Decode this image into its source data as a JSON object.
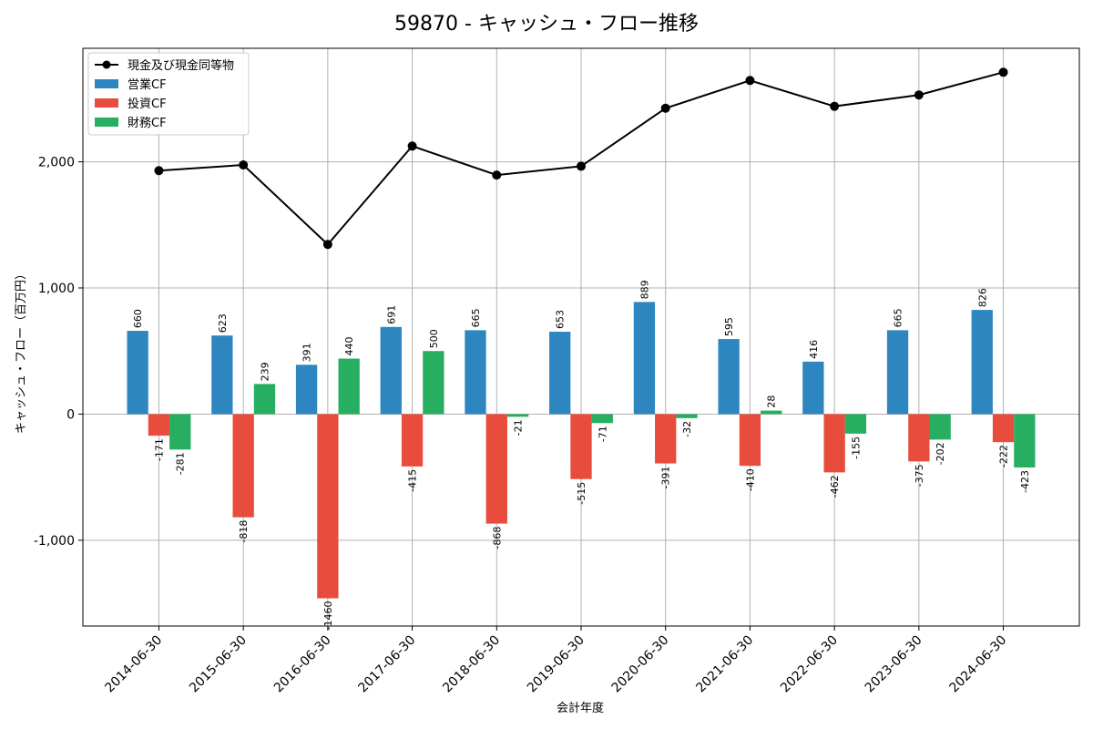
{
  "chart_data": {
    "type": "bar",
    "title": "59870 - キャッシュ・フロー推移",
    "xlabel": "会計年度",
    "ylabel": "キャッシュ・フロー（百万円）",
    "ylim": [
      -1680,
      2900
    ],
    "yticks": [
      -1000,
      0,
      1000,
      2000
    ],
    "ytick_labels": [
      "-1,000",
      "0",
      "1,000",
      "2,000"
    ],
    "grid": true,
    "legend_position": "top-left",
    "categories": [
      "2014-06-30",
      "2015-06-30",
      "2016-06-30",
      "2017-06-30",
      "2018-06-30",
      "2019-06-30",
      "2020-06-30",
      "2021-06-30",
      "2022-06-30",
      "2023-06-30",
      "2024-06-30"
    ],
    "series": [
      {
        "name": "営業CF",
        "kind": "bar",
        "color": "#2e86c1",
        "values": [
          660,
          623,
          391,
          691,
          665,
          653,
          889,
          595,
          416,
          665,
          826
        ]
      },
      {
        "name": "投資CF",
        "kind": "bar",
        "color": "#e74c3c",
        "values": [
          -171,
          -818,
          -1460,
          -415,
          -868,
          -515,
          -391,
          -410,
          -462,
          -375,
          -222
        ]
      },
      {
        "name": "財務CF",
        "kind": "bar",
        "color": "#27ae60",
        "values": [
          -281,
          239,
          440,
          500,
          -21,
          -71,
          -32,
          28,
          -155,
          -202,
          -423
        ]
      },
      {
        "name": "現金及び現金同等物",
        "kind": "line",
        "color": "#000000",
        "values": [
          1930,
          1975,
          1345,
          2125,
          1895,
          1965,
          2425,
          2645,
          2440,
          2530,
          2710
        ]
      }
    ]
  }
}
